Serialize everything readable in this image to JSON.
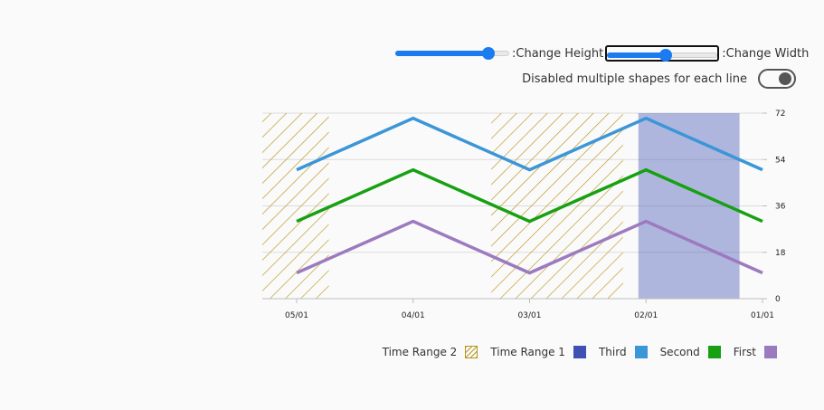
{
  "controls": {
    "height_slider": {
      "label": ":Change Height",
      "value": 0.82
    },
    "width_slider": {
      "label": ":Change Width",
      "value": 0.53
    },
    "multiple_shapes_toggle": {
      "label": "Disabled multiple shapes for each line",
      "on": false
    }
  },
  "chart_data": {
    "type": "line",
    "title": "",
    "xlabel": "",
    "ylabel": "",
    "x_axis": {
      "ticks": [
        "05/01",
        "04/01",
        "03/01",
        "02/01",
        "01/01"
      ],
      "reversed": true
    },
    "y_axis": {
      "position": "right",
      "ylim": [
        0,
        72
      ],
      "ticks": [
        0,
        18,
        36,
        54,
        72
      ]
    },
    "grid": {
      "horizontal": true,
      "vertical": false
    },
    "legend_placement": "bottom-right",
    "series": [
      {
        "name": "Third",
        "color": "#3b96d8",
        "points": [
          [
            "05/01",
            50
          ],
          [
            "04/01",
            70
          ],
          [
            "03/01",
            50
          ],
          [
            "02/01",
            70
          ],
          [
            "01/01",
            50
          ]
        ]
      },
      {
        "name": "Second",
        "color": "#17a012",
        "points": [
          [
            "05/01",
            30
          ],
          [
            "04/01",
            50
          ],
          [
            "03/01",
            30
          ],
          [
            "02/01",
            50
          ],
          [
            "01/01",
            30
          ]
        ]
      },
      {
        "name": "First",
        "color": "#9c7ac0",
        "points": [
          [
            "05/01",
            10
          ],
          [
            "04/01",
            30
          ],
          [
            "03/01",
            10
          ],
          [
            "02/01",
            30
          ],
          [
            "01/01",
            10
          ]
        ]
      }
    ],
    "time_ranges": [
      {
        "name": "Time Range 2",
        "style": "hatched",
        "color": "#b8961e",
        "ranges": [
          [
            "05/11",
            "04/23"
          ],
          [
            "03/11",
            "02/07"
          ]
        ]
      },
      {
        "name": "Time Range 1",
        "style": "solid",
        "color": "#3f51b5",
        "ranges": [
          [
            "02/03",
            "01/07"
          ]
        ]
      }
    ],
    "legend": [
      {
        "label": "Time Range 2",
        "style": "hatched",
        "color": "#b8961e"
      },
      {
        "label": "Time Range 1",
        "style": "solid",
        "color": "#3f51b5"
      },
      {
        "label": "Third",
        "style": "solid",
        "color": "#3b96d8"
      },
      {
        "label": "Second",
        "style": "solid",
        "color": "#17a012"
      },
      {
        "label": "First",
        "style": "solid",
        "color": "#9c7ac0"
      }
    ]
  }
}
